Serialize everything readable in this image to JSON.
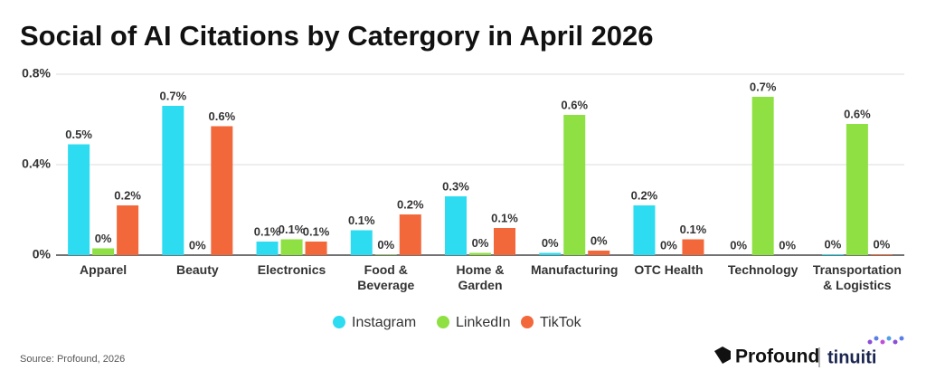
{
  "chart_data": {
    "type": "bar",
    "title": "Social of AI Citations by Catergory in April 2026",
    "categories": [
      "Apparel",
      "Beauty",
      "Electronics",
      "Food &\nBeverage",
      "Home &\nGarden",
      "Manufacturing",
      "OTC Health",
      "Technology",
      "Transportation\n& Logistics"
    ],
    "series": [
      {
        "name": "Instagram",
        "color": "#2ddcf0",
        "values": [
          0.49,
          0.66,
          0.06,
          0.11,
          0.26,
          0.01,
          0.22,
          0,
          0.004
        ],
        "value_labels": [
          "0.5%",
          "0.7%",
          "0.1%",
          "0.1%",
          "0.3%",
          "0%",
          "0.2%",
          "0%",
          "0%"
        ]
      },
      {
        "name": "LinkedIn",
        "color": "#8ee043",
        "values": [
          0.03,
          0,
          0.07,
          0.002,
          0.01,
          0.62,
          0,
          0.7,
          0.58
        ],
        "value_labels": [
          "0%",
          "0%",
          "0.1%",
          "0%",
          "0%",
          "0.6%",
          "0%",
          "0.7%",
          "0.6%"
        ]
      },
      {
        "name": "TikTok",
        "color": "#f2683a",
        "values": [
          0.22,
          0.57,
          0.06,
          0.18,
          0.12,
          0.02,
          0.07,
          0,
          0.004
        ],
        "value_labels": [
          "0.2%",
          "0.6%",
          "0.1%",
          "0.2%",
          "0.1%",
          "0%",
          "0.1%",
          "0%",
          "0%"
        ]
      }
    ],
    "ylim": [
      0,
      0.8
    ],
    "yticks": [
      {
        "value": 0,
        "label": "0%"
      },
      {
        "value": 0.4,
        "label": "0.4%"
      },
      {
        "value": 0.8,
        "label": "0.8%"
      }
    ],
    "grid": true,
    "source": "Source: Profound, 2026"
  },
  "brands": [
    "Profound",
    "tinuiti"
  ]
}
